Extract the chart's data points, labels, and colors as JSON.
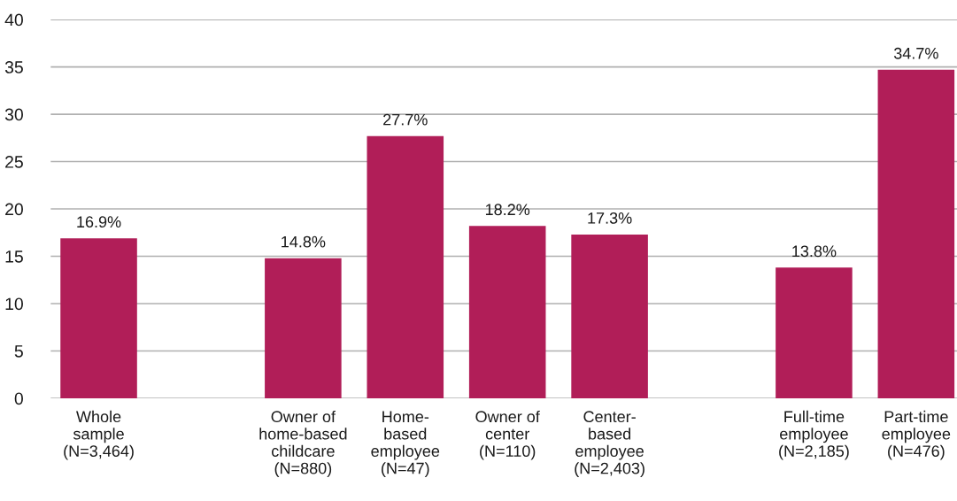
{
  "chart_data": {
    "type": "bar",
    "categories": [
      "Whole\nsample\n(N=3,464)",
      null,
      "Owner of\nhome-based\nchildcare\n(N=880)",
      "Home-\nbased\nemployee\n(N=47)",
      "Owner of\ncenter\n(N=110)",
      "Center-\nbased\nemployee\n(N=2,403)",
      null,
      "Full-time\nemployee\n(N=2,185)",
      "Part-time\nemployee\n(N=476)"
    ],
    "values": [
      16.9,
      null,
      14.8,
      27.7,
      18.2,
      17.3,
      null,
      13.8,
      34.7
    ],
    "value_labels": [
      "16.9%",
      null,
      "14.8%",
      "27.7%",
      "18.2%",
      "17.3%",
      null,
      "13.8%",
      "34.7%"
    ],
    "color": "#b11e58",
    "ylim": [
      0,
      40
    ],
    "yticks": [
      0,
      5,
      10,
      15,
      20,
      25,
      30,
      35,
      40
    ],
    "grid": "y"
  }
}
